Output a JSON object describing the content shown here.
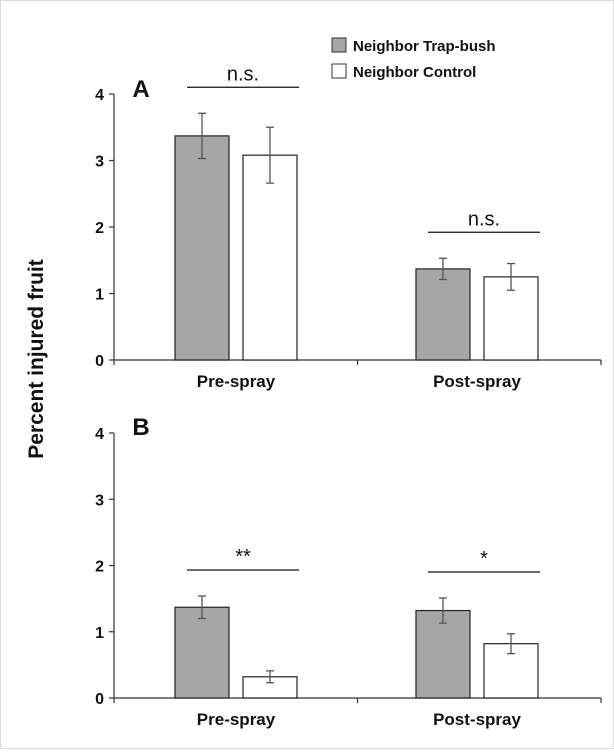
{
  "chart_data": {
    "type": "bar",
    "ylabel": "Percent injured fruit",
    "legend": {
      "placement": "top-right",
      "entries": [
        {
          "name": "Neighbor Trap-bush",
          "color": "#a6a6a6"
        },
        {
          "name": "Neighbor Control",
          "color": "#ffffff"
        }
      ]
    },
    "panels": [
      {
        "label": "A",
        "categories": [
          "Pre-spray",
          "Post-spray"
        ],
        "ylim": [
          0,
          4
        ],
        "yticks": [
          "0",
          "1",
          "2",
          "3",
          "4"
        ],
        "series": [
          {
            "name": "Neighbor Trap-bush",
            "values": [
              3.37,
              1.37
            ],
            "errors": [
              0.34,
              0.16
            ]
          },
          {
            "name": "Neighbor Control",
            "values": [
              3.08,
              1.25
            ],
            "errors": [
              0.42,
              0.2
            ]
          }
        ],
        "significance": [
          "n.s.",
          "n.s."
        ]
      },
      {
        "label": "B",
        "categories": [
          "Pre-spray",
          "Post-spray"
        ],
        "ylim": [
          0,
          4
        ],
        "yticks": [
          "0",
          "1",
          "2",
          "3",
          "4"
        ],
        "series": [
          {
            "name": "Neighbor Trap-bush",
            "values": [
              1.37,
              1.32
            ],
            "errors": [
              0.17,
              0.19
            ]
          },
          {
            "name": "Neighbor Control",
            "values": [
              0.32,
              0.82
            ],
            "errors": [
              0.09,
              0.15
            ]
          }
        ],
        "significance": [
          "**",
          "*"
        ]
      }
    ]
  }
}
